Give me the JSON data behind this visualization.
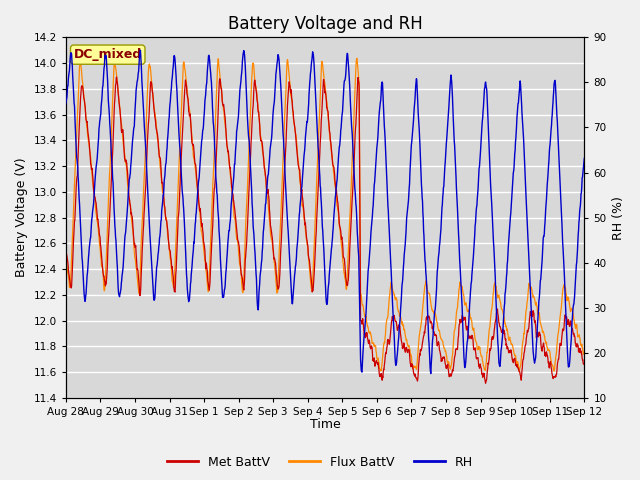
{
  "title": "Battery Voltage and RH",
  "xlabel": "Time",
  "ylabel_left": "Battery Voltage (V)",
  "ylabel_right": "RH (%)",
  "ylim_left": [
    11.4,
    14.2
  ],
  "ylim_right": [
    10,
    90
  ],
  "yticks_left": [
    11.4,
    11.6,
    11.8,
    12.0,
    12.2,
    12.4,
    12.6,
    12.8,
    13.0,
    13.2,
    13.4,
    13.6,
    13.8,
    14.0,
    14.2
  ],
  "yticks_right": [
    10,
    20,
    30,
    40,
    50,
    60,
    70,
    80,
    90
  ],
  "xtick_labels": [
    "Aug 28",
    "Aug 29",
    "Aug 30",
    "Aug 31",
    "Sep 1",
    "Sep 2",
    "Sep 3",
    "Sep 4",
    "Sep 5",
    "Sep 6",
    "Sep 7",
    "Sep 8",
    "Sep 9",
    "Sep 10",
    "Sep 11",
    "Sep 12"
  ],
  "dc_mixed_label": "DC_mixed",
  "dc_mixed_bg": "#ffff99",
  "dc_mixed_border": "#8b0000",
  "legend_labels": [
    "Met BattV",
    "Flux BattV",
    "RH"
  ],
  "line_colors": [
    "#cc0000",
    "#ff8800",
    "#0000cc"
  ],
  "bg_color": "#d8d8d8",
  "fig_bg": "#f0f0f0",
  "figsize": [
    6.4,
    4.8
  ],
  "dpi": 100,
  "title_fontsize": 12,
  "axis_label_fontsize": 9,
  "tick_fontsize": 7.5
}
